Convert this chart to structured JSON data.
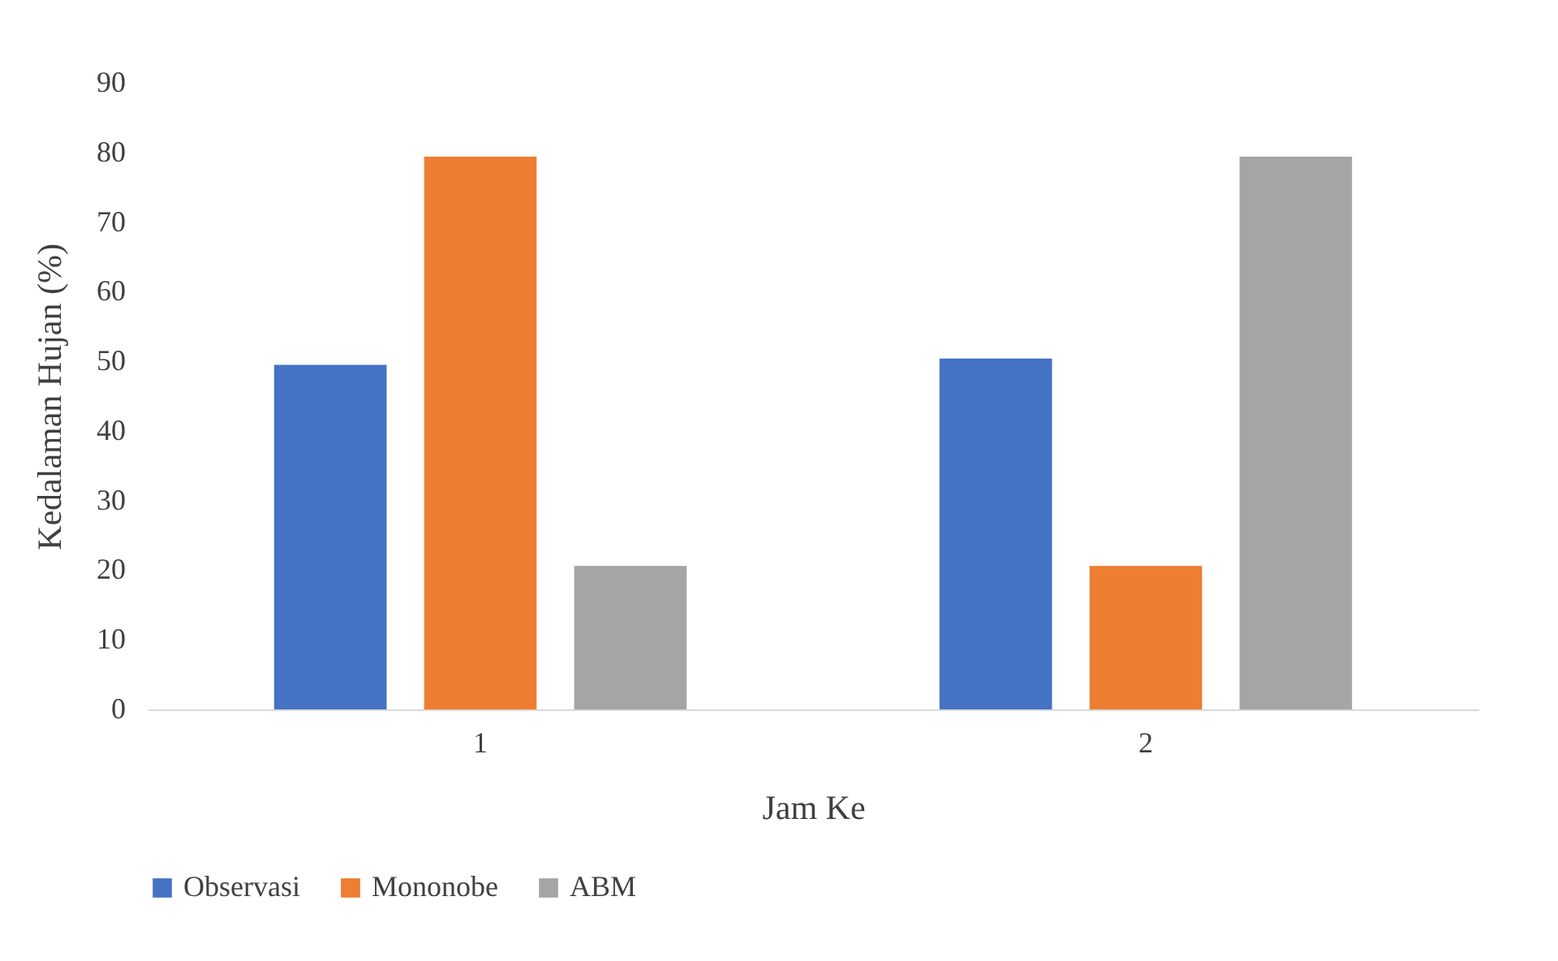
{
  "chart_data": {
    "type": "bar",
    "categories": [
      "1",
      "2"
    ],
    "series": [
      {
        "name": "Observasi",
        "color": "#4472c4",
        "values": [
          49.5,
          50.4
        ]
      },
      {
        "name": "Mononobe",
        "color": "#ed7d31",
        "values": [
          79.4,
          20.6
        ]
      },
      {
        "name": "ABM",
        "color": "#a5a5a5",
        "values": [
          20.6,
          79.4
        ]
      }
    ],
    "xlabel": "Jam Ke",
    "ylabel": "Kedalaman Hujan  (%)",
    "ylim": [
      0,
      90
    ],
    "yticks": [
      0,
      10,
      20,
      30,
      40,
      50,
      60,
      70,
      80,
      90
    ],
    "grid": false,
    "legend": "bottom"
  }
}
